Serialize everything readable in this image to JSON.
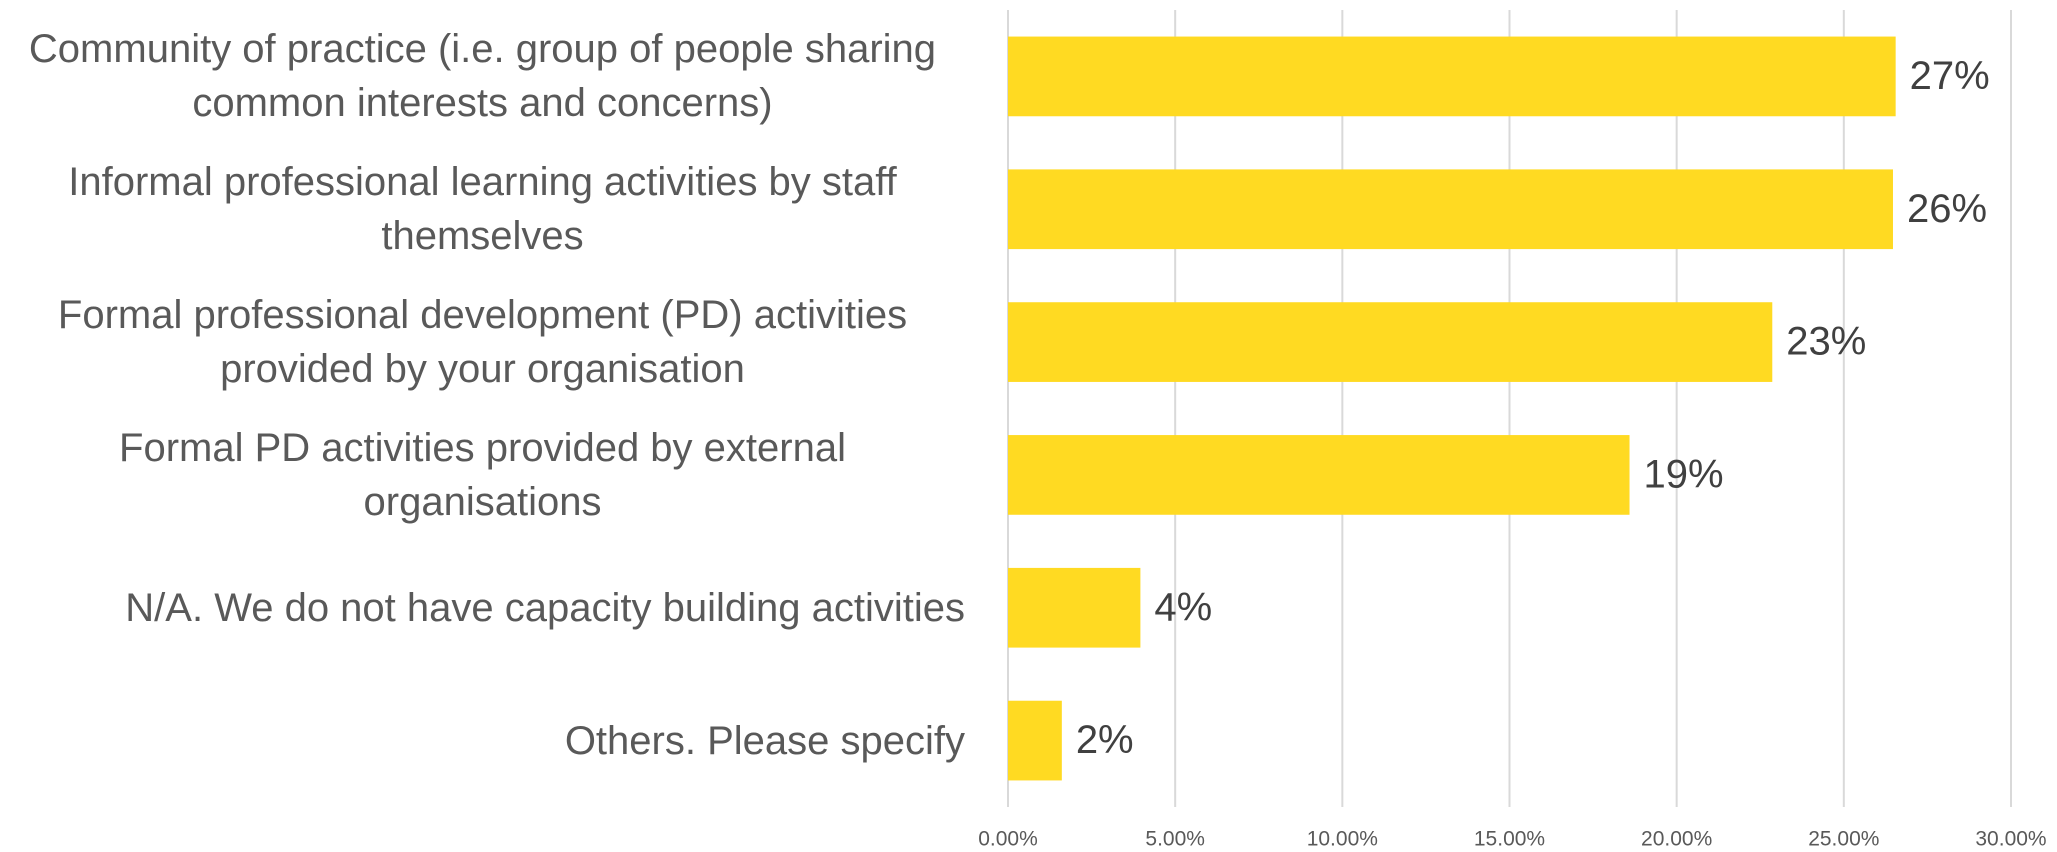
{
  "chart_data": {
    "type": "bar",
    "orientation": "horizontal",
    "categories": [
      "Community of practice (i.e. group of people sharing common interests and concerns)",
      "Informal professional learning activities by staff themselves",
      "Formal professional development (PD) activities provided by your organisation",
      "Formal PD activities provided by external organisations",
      "N/A. We do not have capacity building activities",
      "Others. Please specify"
    ],
    "values": [
      26.55,
      26.47,
      22.86,
      18.59,
      3.96,
      1.61
    ],
    "value_labels": [
      "27%",
      "26%",
      "23%",
      "19%",
      "4%",
      "2%"
    ],
    "color": "#ffda22",
    "xlim": [
      0,
      30
    ],
    "xticks": [
      {
        "value": 0,
        "label": "0.00%"
      },
      {
        "value": 5,
        "label": "5.00%"
      },
      {
        "value": 10,
        "label": "10.00%"
      },
      {
        "value": 15,
        "label": "15.00%"
      },
      {
        "value": 20,
        "label": "20.00%"
      },
      {
        "value": 25,
        "label": "25.00%"
      },
      {
        "value": 30,
        "label": "30.00%"
      }
    ],
    "grid": true
  }
}
